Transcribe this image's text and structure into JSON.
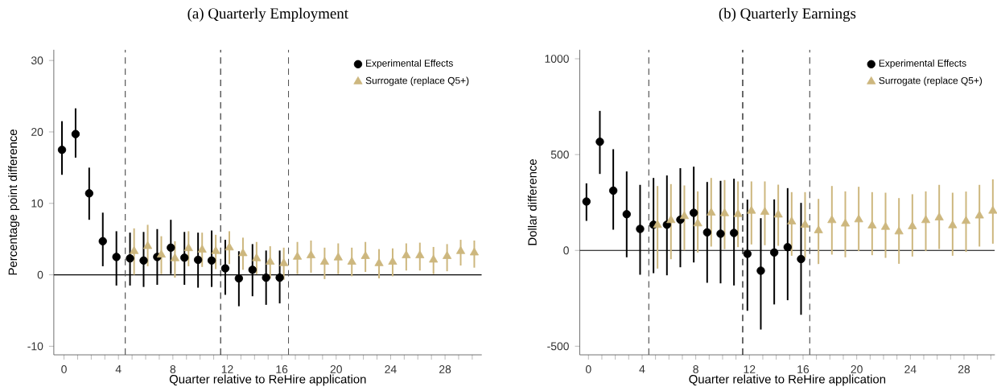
{
  "chart_data": [
    {
      "type": "scatter",
      "title": "(a) Quarterly Employment",
      "xlabel": "Quarter relative to ReHire application",
      "ylabel": "Percentage point difference",
      "xlim": [
        -0.75,
        30.7
      ],
      "ylim": [
        -11.2,
        31.5
      ],
      "xticks": [
        0,
        {
          "value": 1,
          "label": null
        },
        {
          "value": 2,
          "label": null
        },
        {
          "value": 3,
          "label": null
        },
        4,
        {
          "value": 5,
          "label": null
        },
        {
          "value": 6,
          "label": null
        },
        {
          "value": 7,
          "label": null
        },
        8,
        {
          "value": 9,
          "label": null
        },
        {
          "value": 10,
          "label": null
        },
        {
          "value": 11,
          "label": null
        },
        12,
        {
          "value": 13,
          "label": null
        },
        {
          "value": 14,
          "label": null
        },
        {
          "value": 15,
          "label": null
        },
        16,
        {
          "value": 17,
          "label": null
        },
        {
          "value": 18,
          "label": null
        },
        {
          "value": 19,
          "label": null
        },
        20,
        {
          "value": 21,
          "label": null
        },
        {
          "value": 22,
          "label": null
        },
        {
          "value": 23,
          "label": null
        },
        24,
        {
          "value": 25,
          "label": null
        },
        {
          "value": 26,
          "label": null
        },
        {
          "value": 27,
          "label": null
        },
        28,
        {
          "value": 29,
          "label": null
        },
        {
          "value": 30,
          "label": null
        }
      ],
      "yticks": [
        -10,
        0,
        10,
        20,
        30
      ],
      "legend": "top right",
      "ref_lines": [
        {
          "axis": "y",
          "value": 0,
          "color": "#000000",
          "line_style": "solid"
        },
        {
          "axis": "x",
          "value": 4.5,
          "color": "#555555",
          "line_style": "dashed"
        },
        {
          "axis": "x",
          "value": 11.5,
          "color": "#000000",
          "line_style": "dashed"
        },
        {
          "axis": "x",
          "value": 16.5,
          "color": "#555555",
          "line_style": "dashed"
        }
      ],
      "series": [
        {
          "name": "Experimental Effects",
          "color": "#000000",
          "marker": "circle",
          "x": [
            -0.15,
            0.85,
            1.85,
            2.85,
            3.85,
            4.85,
            5.85,
            6.85,
            7.85,
            8.85,
            9.85,
            10.85,
            11.85,
            12.85,
            13.85,
            14.85,
            15.85
          ],
          "values": [
            17.5,
            19.7,
            11.4,
            4.7,
            2.5,
            2.3,
            2.0,
            2.5,
            3.8,
            2.4,
            2.1,
            2.0,
            0.9,
            -0.5,
            0.7,
            -0.4,
            -0.4
          ],
          "errors": [
            [
              14.0,
              21.5
            ],
            [
              16.4,
              23.3
            ],
            [
              7.7,
              15.0
            ],
            [
              1.2,
              8.7
            ],
            [
              -1.5,
              6.1
            ],
            [
              -1.5,
              5.9
            ],
            [
              -1.7,
              6.0
            ],
            [
              -1.4,
              6.4
            ],
            [
              0.1,
              7.7
            ],
            [
              -1.4,
              6.0
            ],
            [
              -1.8,
              5.9
            ],
            [
              -1.7,
              6.2
            ],
            [
              -2.8,
              4.9
            ],
            [
              -4.4,
              3.3
            ],
            [
              -3.0,
              4.3
            ],
            [
              -4.2,
              3.4
            ],
            [
              -4.0,
              3.4
            ]
          ]
        },
        {
          "name": "Surrogate (replace Q5+)",
          "color": "#cdb77e",
          "marker": "triangle",
          "x": [
            5.15,
            6.15,
            7.15,
            8.15,
            9.15,
            10.15,
            11.15,
            12.15,
            13.15,
            14.15,
            15.15,
            16.15,
            17.15,
            18.15,
            19.15,
            20.15,
            21.15,
            22.15,
            23.15,
            24.15,
            25.15,
            26.15,
            27.15,
            28.15,
            29.15,
            30.15
          ],
          "values": [
            3.3,
            4.0,
            2.8,
            2.3,
            3.7,
            3.5,
            3.3,
            3.8,
            3.0,
            2.3,
            1.8,
            1.6,
            2.5,
            2.7,
            1.8,
            2.4,
            1.8,
            2.6,
            1.6,
            1.8,
            2.7,
            2.7,
            2.1,
            2.6,
            3.3,
            3.1
          ],
          "errors": [
            [
              0.0,
              6.5
            ],
            [
              1.2,
              7.0
            ],
            [
              0.1,
              5.4
            ],
            [
              -0.4,
              4.7
            ],
            [
              1.2,
              6.1
            ],
            [
              1.1,
              5.9
            ],
            [
              0.8,
              5.6
            ],
            [
              1.5,
              6.1
            ],
            [
              0.7,
              5.2
            ],
            [
              0.1,
              4.6
            ],
            [
              -0.5,
              4.0
            ],
            [
              -0.7,
              3.8
            ],
            [
              0.1,
              4.6
            ],
            [
              0.3,
              4.8
            ],
            [
              -0.6,
              3.8
            ],
            [
              0.1,
              4.4
            ],
            [
              -0.2,
              3.8
            ],
            [
              0.4,
              4.6
            ],
            [
              -0.5,
              3.6
            ],
            [
              -0.2,
              3.7
            ],
            [
              0.6,
              4.4
            ],
            [
              0.6,
              4.5
            ],
            [
              0.1,
              3.9
            ],
            [
              0.5,
              4.3
            ],
            [
              1.3,
              4.9
            ],
            [
              1.0,
              4.8
            ]
          ]
        }
      ]
    },
    {
      "type": "scatter",
      "title": "(b) Quarterly Earnings",
      "xlabel": "Quarter relative to ReHire application",
      "ylabel": "Dollar difference",
      "xlim": [
        -0.65,
        30.3
      ],
      "ylim": [
        -545,
        1047
      ],
      "xticks": [
        0,
        {
          "value": 1,
          "label": null
        },
        {
          "value": 2,
          "label": null
        },
        {
          "value": 3,
          "label": null
        },
        4,
        {
          "value": 5,
          "label": null
        },
        {
          "value": 6,
          "label": null
        },
        {
          "value": 7,
          "label": null
        },
        8,
        {
          "value": 9,
          "label": null
        },
        {
          "value": 10,
          "label": null
        },
        {
          "value": 11,
          "label": null
        },
        12,
        {
          "value": 13,
          "label": null
        },
        {
          "value": 14,
          "label": null
        },
        {
          "value": 15,
          "label": null
        },
        16,
        {
          "value": 17,
          "label": null
        },
        {
          "value": 18,
          "label": null
        },
        {
          "value": 19,
          "label": null
        },
        20,
        {
          "value": 21,
          "label": null
        },
        {
          "value": 22,
          "label": null
        },
        {
          "value": 23,
          "label": null
        },
        24,
        {
          "value": 25,
          "label": null
        },
        {
          "value": 26,
          "label": null
        },
        {
          "value": 27,
          "label": null
        },
        28,
        {
          "value": 29,
          "label": null
        },
        {
          "value": 30,
          "label": null
        }
      ],
      "yticks": [
        -500,
        0,
        500,
        1000
      ],
      "legend": "top right",
      "ref_lines": [
        {
          "axis": "y",
          "value": 0,
          "color": "#000000",
          "line_style": "solid"
        },
        {
          "axis": "x",
          "value": 4.5,
          "color": "#555555",
          "line_style": "dashed"
        },
        {
          "axis": "x",
          "value": 11.5,
          "color": "#000000",
          "line_style": "dashed"
        },
        {
          "axis": "x",
          "value": 16.5,
          "color": "#555555",
          "line_style": "dashed"
        }
      ],
      "series": [
        {
          "name": "Experimental Effects",
          "color": "#000000",
          "marker": "circle",
          "x": [
            -0.15,
            0.85,
            1.85,
            2.85,
            3.85,
            4.85,
            5.85,
            6.85,
            7.85,
            8.85,
            9.85,
            10.85,
            11.85,
            12.85,
            13.85,
            14.85,
            15.85
          ],
          "values": [
            255,
            567,
            312,
            189,
            112,
            134,
            134,
            160,
            196,
            94,
            87,
            91,
            -18,
            -106,
            -11,
            17,
            -45
          ],
          "errors": [
            [
              154,
              350
            ],
            [
              399,
              728
            ],
            [
              108,
              528
            ],
            [
              -36,
              412
            ],
            [
              -127,
              342
            ],
            [
              -119,
              378
            ],
            [
              -130,
              391
            ],
            [
              -88,
              429
            ],
            [
              -63,
              437
            ],
            [
              -169,
              357
            ],
            [
              -172,
              363
            ],
            [
              -183,
              374
            ],
            [
              -315,
              265
            ],
            [
              -413,
              168
            ],
            [
              -282,
              266
            ],
            [
              -260,
              325
            ],
            [
              -336,
              248
            ]
          ]
        },
        {
          "name": "Surrogate (replace Q5+)",
          "color": "#cdb77e",
          "marker": "triangle",
          "x": [
            5.15,
            6.15,
            7.15,
            8.15,
            9.15,
            10.15,
            11.15,
            12.15,
            13.15,
            14.15,
            15.15,
            16.15,
            17.15,
            18.15,
            19.15,
            20.15,
            21.15,
            22.15,
            23.15,
            24.15,
            25.15,
            26.15,
            27.15,
            28.15,
            29.15,
            30.15
          ],
          "values": [
            132,
            157,
            178,
            140,
            196,
            193,
            189,
            206,
            200,
            186,
            150,
            133,
            104,
            157,
            139,
            161,
            129,
            122,
            98,
            125,
            157,
            171,
            130,
            153,
            181,
            206
          ],
          "errors": [
            [
              -95,
              336
            ],
            [
              -46,
              346
            ],
            [
              0,
              339
            ],
            [
              -11,
              308
            ],
            [
              20,
              378
            ],
            [
              6,
              367
            ],
            [
              17,
              360
            ],
            [
              31,
              360
            ],
            [
              27,
              360
            ],
            [
              24,
              343
            ],
            [
              -28,
              304
            ],
            [
              -39,
              304
            ],
            [
              -71,
              269
            ],
            [
              -22,
              336
            ],
            [
              -36,
              308
            ],
            [
              -4,
              332
            ],
            [
              -25,
              304
            ],
            [
              -39,
              301
            ],
            [
              -70,
              273
            ],
            [
              -32,
              293
            ],
            [
              -4,
              308
            ],
            [
              7,
              342
            ],
            [
              -28,
              301
            ],
            [
              -8,
              307
            ],
            [
              20,
              342
            ],
            [
              35,
              371
            ]
          ]
        }
      ]
    }
  ]
}
